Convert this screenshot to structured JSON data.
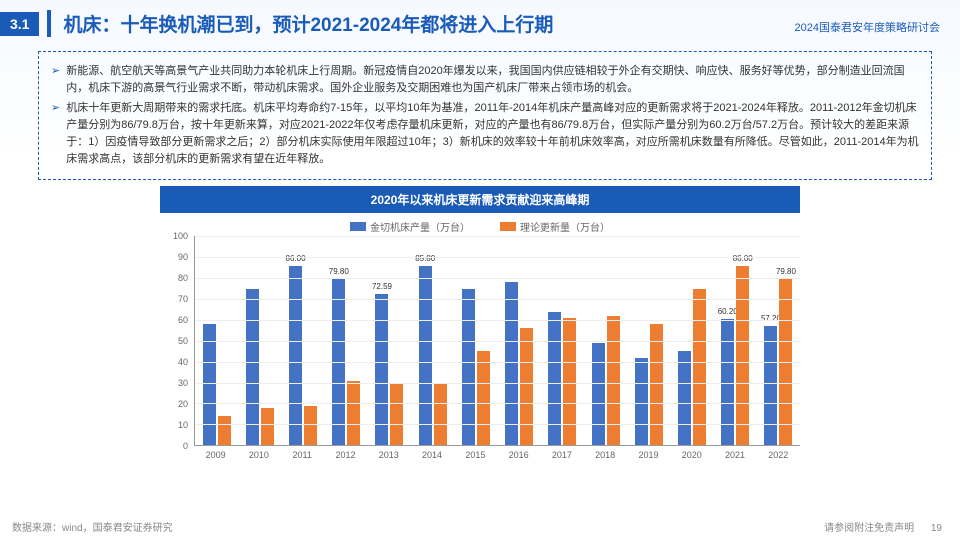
{
  "header": {
    "section_num": "3.1",
    "title": "机床：十年换机潮已到，预计2021-2024年都将进入上行期",
    "subtitle": "2024国泰君安年度策略研讨会"
  },
  "bullets": [
    "新能源、航空航天等高景气产业共同助力本轮机床上行周期。新冠疫情自2020年爆发以来，我国国内供应链相较于外企有交期快、响应快、服务好等优势，部分制造业回流国内，机床下游的高景气行业需求不断，带动机床需求。国外企业服务及交期困难也为国产机床厂带来占领市场的机会。",
    "机床十年更新大周期带来的需求托底。机床平均寿命约7-15年，以平均10年为基准，2011年-2014年机床产量高峰对应的更新需求将于2021-2024年释放。2011-2012年金切机床产量分别为86/79.8万台，按十年更新来算，对应2021-2022年仅考虑存量机床更新，对应的产量也有86/79.8万台，但实际产量分别为60.2万台/57.2万台。预计较大的差距来源于：1）因疫情导致部分更新需求之后；2）部分机床实际使用年限超过10年；3）新机床的效率较十年前机床效率高，对应所需机床数量有所降低。尽管如此，2011-2014年为机床需求高点，该部分机床的更新需求有望在近年释放。"
  ],
  "chart": {
    "title": "2020年以来机床更新需求贡献迎来高峰期",
    "series": [
      {
        "name": "金切机床产量（万台）",
        "color": "#4472c4"
      },
      {
        "name": "理论更新量（万台）",
        "color": "#ed7d31"
      }
    ],
    "ymax": 100,
    "ytick_step": 10,
    "years": [
      "2009",
      "2010",
      "2011",
      "2012",
      "2013",
      "2014",
      "2015",
      "2016",
      "2017",
      "2018",
      "2019",
      "2020",
      "2021",
      "2022"
    ],
    "production": [
      58,
      75,
      86.0,
      79.8,
      72.59,
      85.8,
      75,
      78,
      64,
      49,
      42,
      45,
      60.2,
      57.2
    ],
    "renewal": [
      14,
      18,
      19,
      31,
      30,
      30,
      45,
      56,
      61,
      62,
      58,
      75,
      86.0,
      79.8
    ],
    "prod_labels": {
      "2011": "86.00",
      "2012": "79.80",
      "2013": "72.59",
      "2014": "85.80",
      "2021": "60.20",
      "2022": "57.20"
    },
    "renew_labels": {
      "2021": "86.00",
      "2022": "79.80"
    },
    "grid_color": "#eeeeee",
    "axis_color": "#999999",
    "label_fontsize": 9
  },
  "source": "数据来源：wind，国泰君安证券研究",
  "footer": {
    "disclaimer": "请参阅附注免责声明",
    "page": "19"
  }
}
